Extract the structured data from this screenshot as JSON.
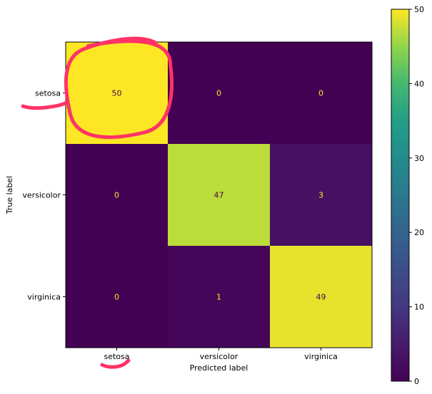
{
  "chart_data": {
    "type": "heatmap",
    "title": "",
    "xlabel": "Predicted label",
    "ylabel": "True label",
    "x_categories": [
      "setosa",
      "versicolor",
      "virginica"
    ],
    "y_categories": [
      "setosa",
      "versicolor",
      "virginica"
    ],
    "matrix": [
      [
        50,
        0,
        0
      ],
      [
        0,
        47,
        3
      ],
      [
        0,
        1,
        49
      ]
    ],
    "colormap": "viridis",
    "colorbar": {
      "range": [
        0,
        50
      ],
      "ticks": [
        0,
        10,
        20,
        30,
        40,
        50
      ]
    },
    "value_text_colors": {
      "on_dark": "#fde725",
      "on_light": "#440154"
    },
    "annotations": {
      "highlight_cell": {
        "row": 0,
        "col": 0
      },
      "ink_color": "#ff3366"
    }
  }
}
